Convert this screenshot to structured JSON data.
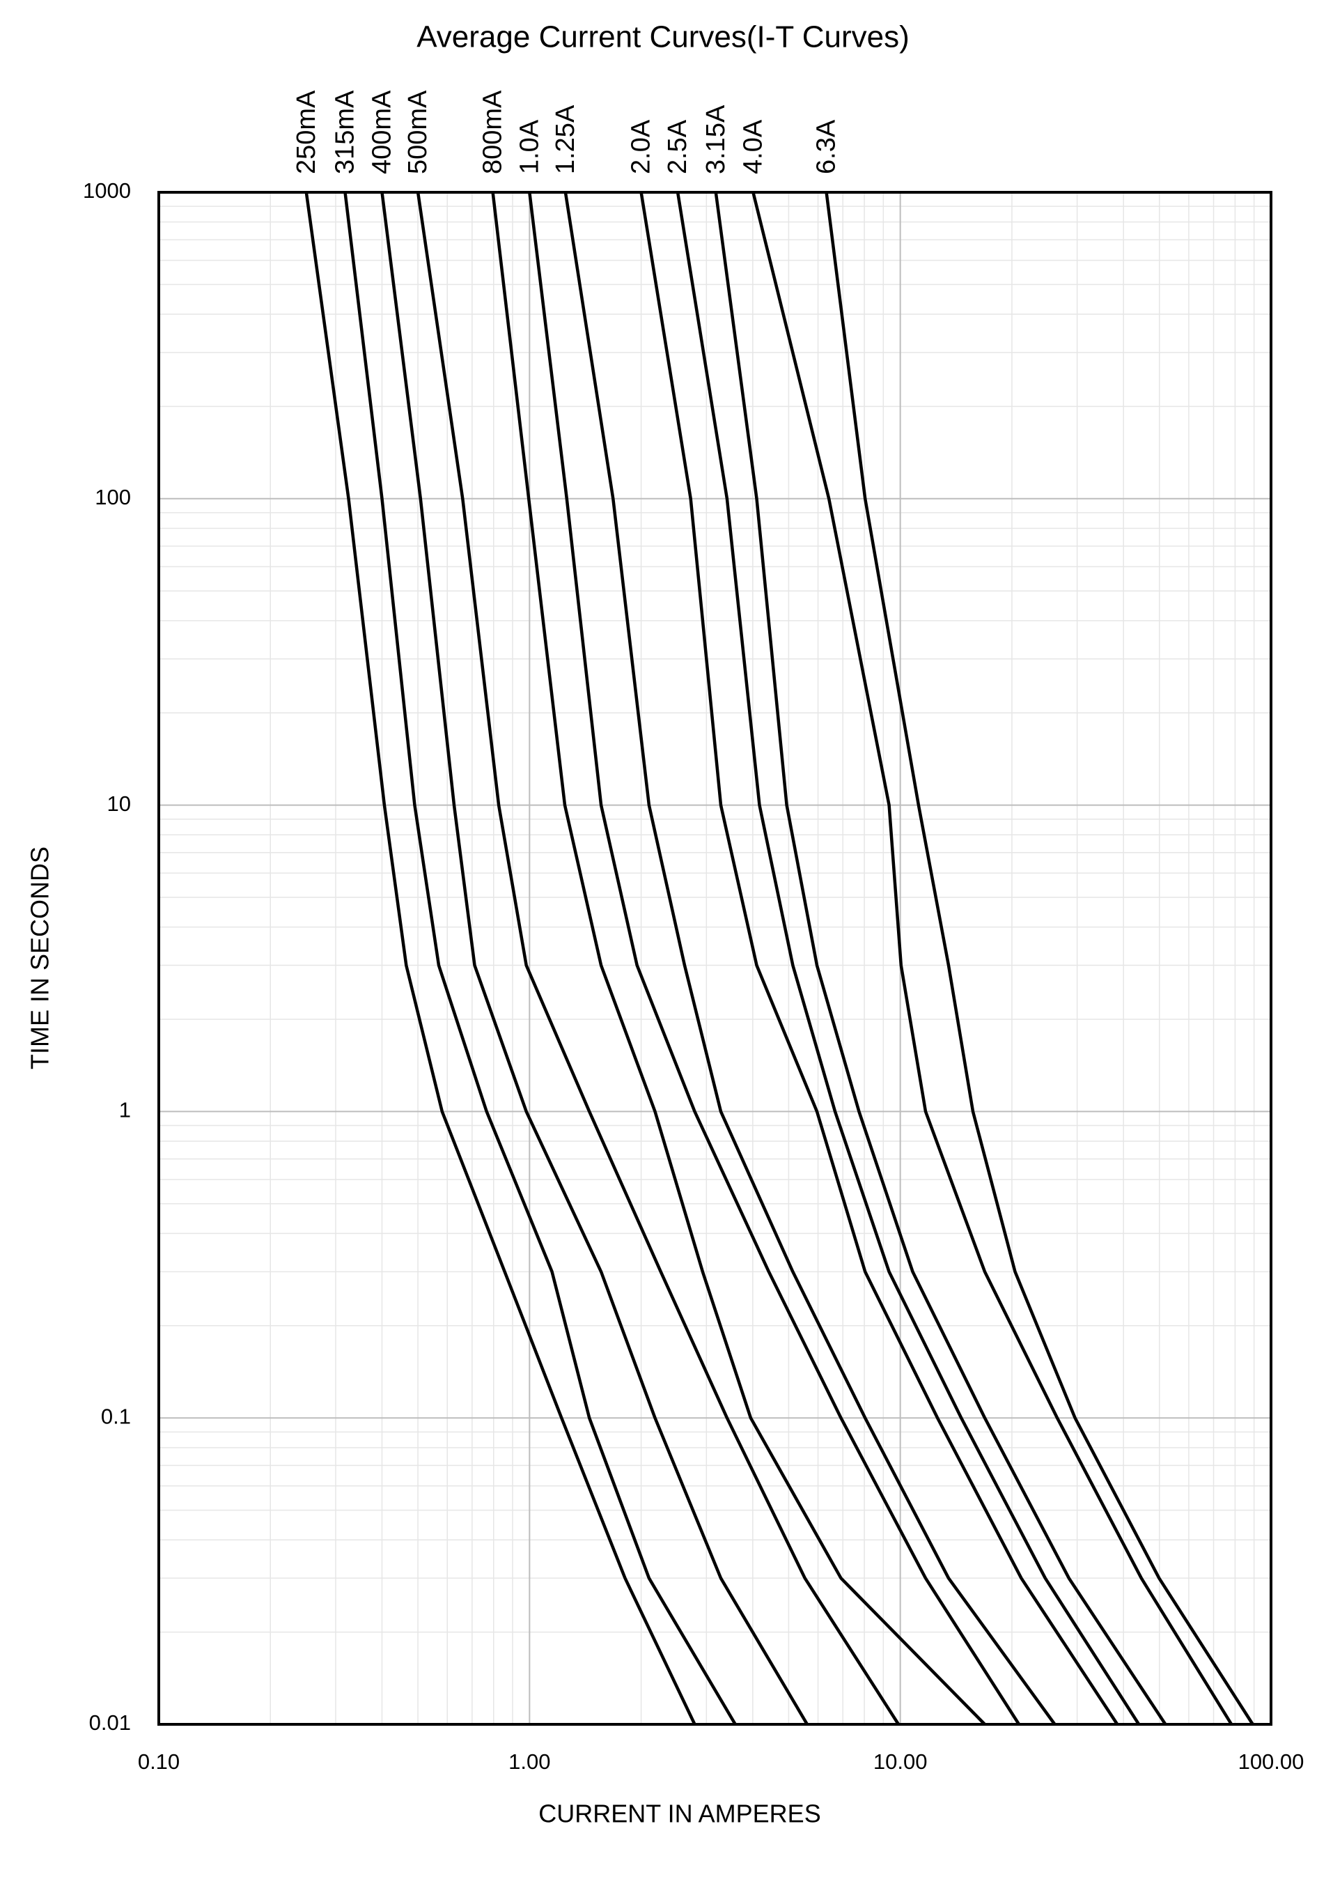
{
  "chart_data": {
    "type": "line",
    "title": "Average Current Curves(I-T Curves)",
    "x_label": "CURRENT IN AMPERES",
    "y_label": "TIME IN SECONDS",
    "x_scale": "log",
    "y_scale": "log",
    "grid": true,
    "xlim": [
      0.1,
      100
    ],
    "ylim": [
      0.01,
      1000
    ],
    "xticks": [
      {
        "value": 0.1,
        "label": "0.10"
      },
      {
        "value": 1,
        "label": "1.00"
      },
      {
        "value": 10,
        "label": "10.00"
      },
      {
        "value": 100,
        "label": "100.00"
      }
    ],
    "yticks": [
      0.01,
      0.1,
      1,
      10,
      100,
      1000
    ],
    "series": [
      {
        "name": "250mA",
        "color": "#000000",
        "x": [
          0.25,
          0.325,
          0.406,
          0.465,
          0.581,
          0.857,
          1.22,
          1.81,
          2.79
        ],
        "values": [
          1000,
          100,
          10,
          3,
          1,
          0.3,
          0.1,
          0.03,
          0.01
        ]
      },
      {
        "name": "315mA",
        "color": "#000000",
        "x": [
          0.318,
          0.4,
          0.49,
          0.569,
          0.766,
          1.15,
          1.45,
          2.1,
          3.59
        ],
        "values": [
          1000,
          100,
          10,
          3,
          1,
          0.3,
          0.1,
          0.03,
          0.01
        ]
      },
      {
        "name": "400mA",
        "color": "#000000",
        "x": [
          0.4,
          0.508,
          0.626,
          0.711,
          0.98,
          1.56,
          2.18,
          3.28,
          5.61
        ],
        "values": [
          1000,
          100,
          10,
          3,
          1,
          0.3,
          0.1,
          0.03,
          0.01
        ]
      },
      {
        "name": "500mA",
        "color": "#000000",
        "x": [
          0.5,
          0.66,
          0.826,
          0.98,
          1.45,
          2.26,
          3.41,
          5.53,
          9.89
        ],
        "values": [
          1000,
          100,
          10,
          3,
          1,
          0.3,
          0.1,
          0.03,
          0.01
        ]
      },
      {
        "name": "800mA",
        "color": "#000000",
        "x": [
          0.796,
          0.995,
          1.245,
          1.56,
          2.18,
          2.93,
          3.95,
          6.92,
          16.9
        ],
        "values": [
          1000,
          100,
          10,
          3,
          1,
          0.3,
          0.1,
          0.03,
          0.01
        ]
      },
      {
        "name": "1.0A",
        "color": "#000000",
        "x": [
          1.0,
          1.26,
          1.56,
          1.95,
          2.79,
          4.42,
          6.92,
          11.7,
          20.9
        ],
        "values": [
          1000,
          100,
          10,
          3,
          1,
          0.3,
          0.1,
          0.03,
          0.01
        ]
      },
      {
        "name": "1.25A",
        "color": "#000000",
        "x": [
          1.25,
          1.68,
          2.1,
          2.62,
          3.28,
          5.13,
          8.04,
          13.5,
          26.1
        ],
        "values": [
          1000,
          100,
          10,
          3,
          1,
          0.3,
          0.1,
          0.03,
          0.01
        ]
      },
      {
        "name": "2.0A",
        "color": "#000000",
        "x": [
          2.0,
          2.72,
          3.28,
          4.1,
          5.96,
          8.04,
          12.6,
          21.2,
          38.5
        ],
        "values": [
          1000,
          100,
          10,
          3,
          1,
          0.3,
          0.1,
          0.03,
          0.01
        ]
      },
      {
        "name": "2.5A",
        "color": "#000000",
        "x": [
          2.51,
          3.41,
          4.17,
          5.13,
          6.67,
          9.33,
          14.6,
          24.6,
          44.0
        ],
        "values": [
          1000,
          100,
          10,
          3,
          1,
          0.3,
          0.1,
          0.03,
          0.01
        ]
      },
      {
        "name": "3.15A",
        "color": "#000000",
        "x": [
          3.18,
          4.1,
          4.94,
          5.96,
          7.74,
          10.8,
          16.9,
          28.5,
          51.9
        ],
        "values": [
          1000,
          100,
          10,
          3,
          1,
          0.3,
          0.1,
          0.03,
          0.01
        ]
      },
      {
        "name": "4.0A",
        "color": "#000000",
        "x": [
          4.01,
          6.42,
          9.33,
          10.05,
          11.7,
          16.9,
          26.5,
          44.7,
          78.2
        ],
        "values": [
          1000,
          100,
          10,
          3,
          1,
          0.3,
          0.1,
          0.03,
          0.01
        ]
      },
      {
        "name": "6.3A",
        "color": "#000000",
        "x": [
          6.32,
          8.04,
          11.2,
          13.5,
          15.7,
          20.4,
          29.6,
          49.9,
          89.3
        ],
        "values": [
          1000,
          100,
          10,
          3,
          1,
          0.3,
          0.1,
          0.03,
          0.01
        ]
      }
    ]
  }
}
